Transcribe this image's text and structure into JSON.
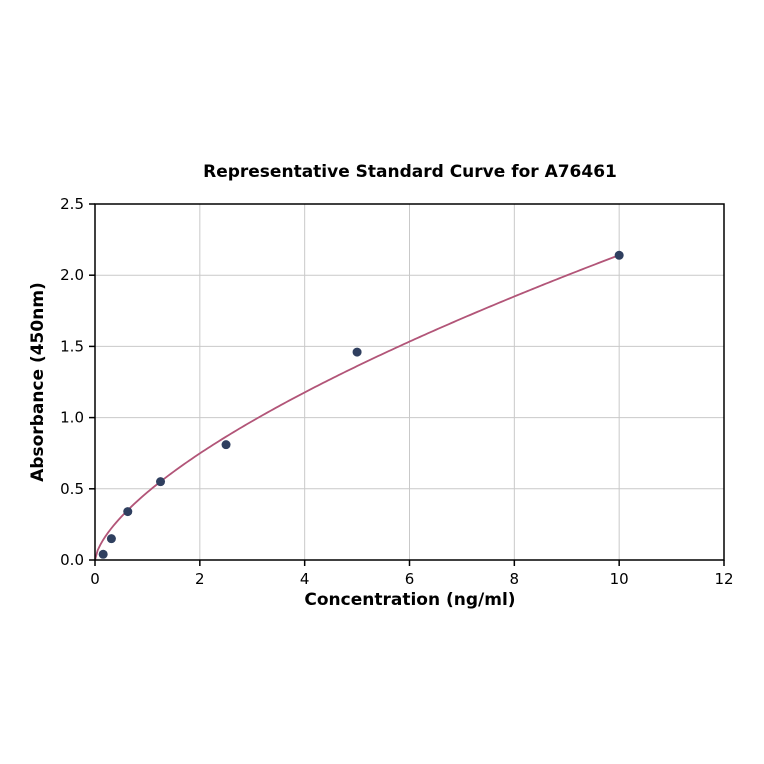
{
  "figure": {
    "title": "Representative Standard Curve for A76461",
    "xlabel": "Concentration (ng/ml)",
    "ylabel": "Absorbance (450nm)"
  },
  "chart_data": {
    "type": "scatter",
    "title": "Representative Standard Curve for A76461",
    "xlabel": "Concentration (ng/ml)",
    "ylabel": "Absorbance (450nm)",
    "xlim": [
      0,
      12
    ],
    "ylim": [
      0,
      2.5
    ],
    "xticks": [
      0,
      2,
      4,
      6,
      8,
      10,
      12
    ],
    "xtick_labels": [
      "0",
      "2",
      "4",
      "6",
      "8",
      "10",
      "12"
    ],
    "yticks": [
      0.0,
      0.5,
      1.0,
      1.5,
      2.0,
      2.5
    ],
    "ytick_labels": [
      "0.0",
      "0.5",
      "1.0",
      "1.5",
      "2.0",
      "2.5"
    ],
    "grid": true,
    "legend": "none",
    "points": {
      "x": [
        0.156,
        0.313,
        0.625,
        1.25,
        2.5,
        5,
        10
      ],
      "y": [
        0.04,
        0.15,
        0.34,
        0.55,
        0.81,
        1.46,
        2.14
      ]
    },
    "fit_curve": {
      "type": "power",
      "a": 0.476,
      "b": 0.653,
      "x_range": [
        0,
        10
      ]
    },
    "colors": {
      "points": "#2f3f5f",
      "curve": "#b25578",
      "grid": "#c9c9c9",
      "axis": "#000000"
    }
  }
}
